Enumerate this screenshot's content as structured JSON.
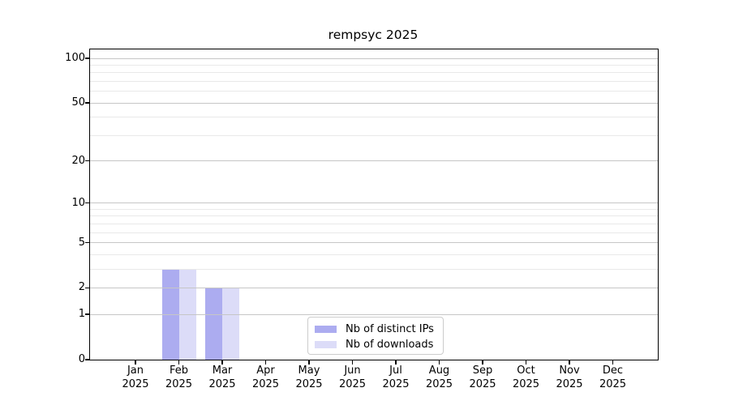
{
  "figure": {
    "background": "#ffffff"
  },
  "chart_data": {
    "type": "bar",
    "title": "rempsyc 2025",
    "categories": [
      "Jan 2025",
      "Feb 2025",
      "Mar 2025",
      "Apr 2025",
      "May 2025",
      "Jun 2025",
      "Jul 2025",
      "Aug 2025",
      "Sep 2025",
      "Oct 2025",
      "Nov 2025",
      "Dec 2025"
    ],
    "series": [
      {
        "name": "Nb of distinct IPs",
        "color": "#acacf0",
        "values": [
          0,
          3,
          2,
          0,
          0,
          0,
          0,
          0,
          0,
          0,
          0,
          0
        ]
      },
      {
        "name": "Nb of downloads",
        "color": "#dcdcf8",
        "values": [
          0,
          3,
          2,
          0,
          0,
          0,
          0,
          0,
          0,
          0,
          0,
          0
        ]
      }
    ],
    "xlabel": "",
    "ylabel": "",
    "yscale": "log1p",
    "ylim": [
      0,
      115
    ],
    "y_major_ticks": [
      0,
      1,
      2,
      5,
      10,
      20,
      50,
      100
    ],
    "y_minor_gridlines": [
      3,
      4,
      6,
      7,
      8,
      9,
      30,
      40,
      60,
      70,
      80,
      90
    ],
    "grid": true,
    "grid_above_bars": true,
    "legend_position": "lower-center-inside"
  },
  "colors": {
    "bar_distinct_ips": "#acacf0",
    "bar_downloads": "#dcdcf8",
    "grid_major": "#c6c6c6",
    "grid_minor": "#e9e9e9",
    "axis": "#000000",
    "legend_border": "#cccccc"
  }
}
